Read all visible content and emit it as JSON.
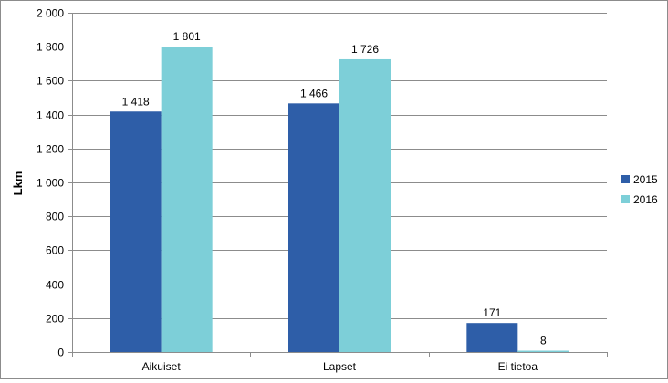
{
  "chart_data": {
    "type": "bar",
    "categories": [
      "Aikuiset",
      "Lapset",
      "Ei tietoa"
    ],
    "series": [
      {
        "name": "2015",
        "values": [
          1418,
          1466,
          171
        ],
        "color": "#2e5ea8"
      },
      {
        "name": "2016",
        "values": [
          1801,
          1726,
          8
        ],
        "color": "#7dcfd8"
      }
    ],
    "value_labels": [
      [
        "1 418",
        "1 466",
        "171"
      ],
      [
        "1 801",
        "1 726",
        "8"
      ]
    ],
    "ylabel": "Lkm",
    "ylim": [
      0,
      2000
    ],
    "yticks": [
      0,
      200,
      400,
      600,
      800,
      1000,
      1200,
      1400,
      1600,
      1800,
      2000
    ],
    "ytick_labels": [
      "0",
      "200",
      "400",
      "600",
      "800",
      "1 000",
      "1 200",
      "1 400",
      "1 600",
      "1 800",
      "2 000"
    ],
    "grid": true,
    "legend_position": "right"
  }
}
